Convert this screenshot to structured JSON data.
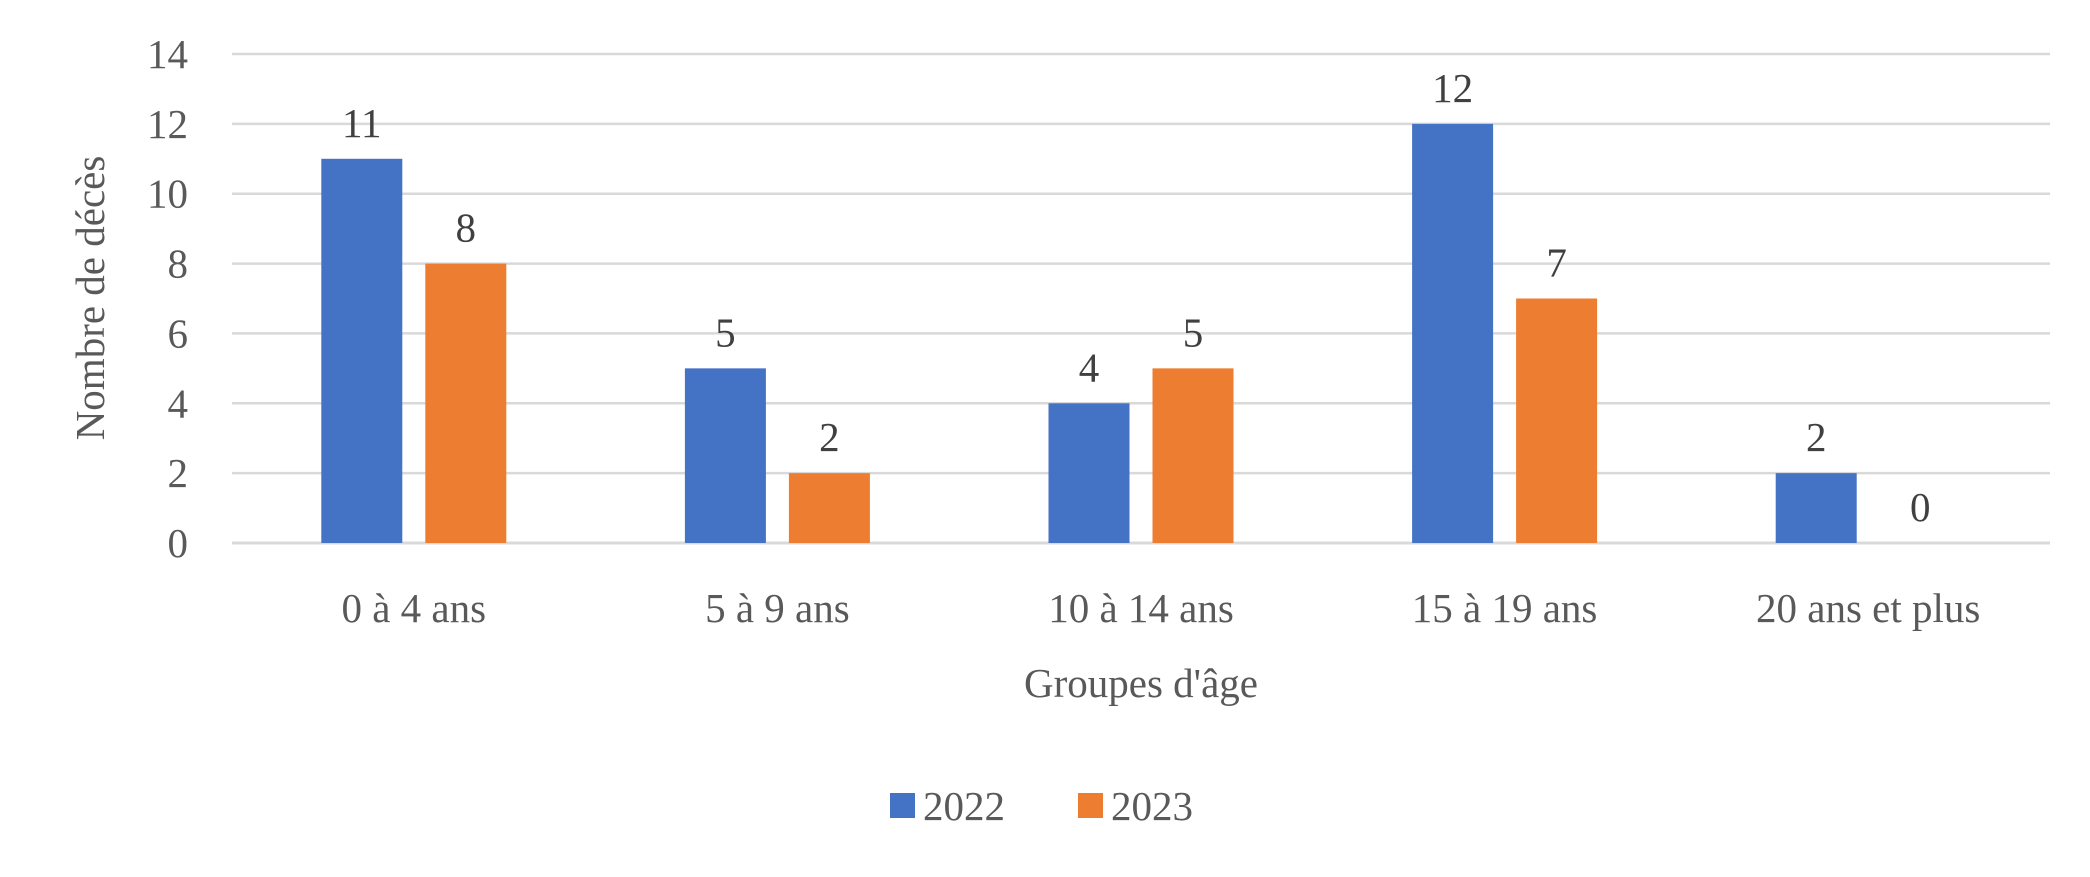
{
  "chart_data": {
    "type": "bar",
    "title": "",
    "xlabel": "Groupes d'âge",
    "ylabel": "Nombre de décès",
    "categories": [
      "0 à 4 ans",
      "5 à 9 ans",
      "10 à 14 ans",
      "15 à 19 ans",
      "20 ans et plus"
    ],
    "series": [
      {
        "name": "2022",
        "color": "#4472C4",
        "values": [
          11,
          5,
          4,
          12,
          2
        ]
      },
      {
        "name": "2023",
        "color": "#ED7D31",
        "values": [
          8,
          2,
          5,
          7,
          0
        ]
      }
    ],
    "ylim": [
      0,
      14
    ],
    "yticks": [
      0,
      2,
      4,
      6,
      8,
      10,
      12,
      14
    ],
    "grid": true,
    "data_labels": true,
    "legend": "bottom"
  }
}
